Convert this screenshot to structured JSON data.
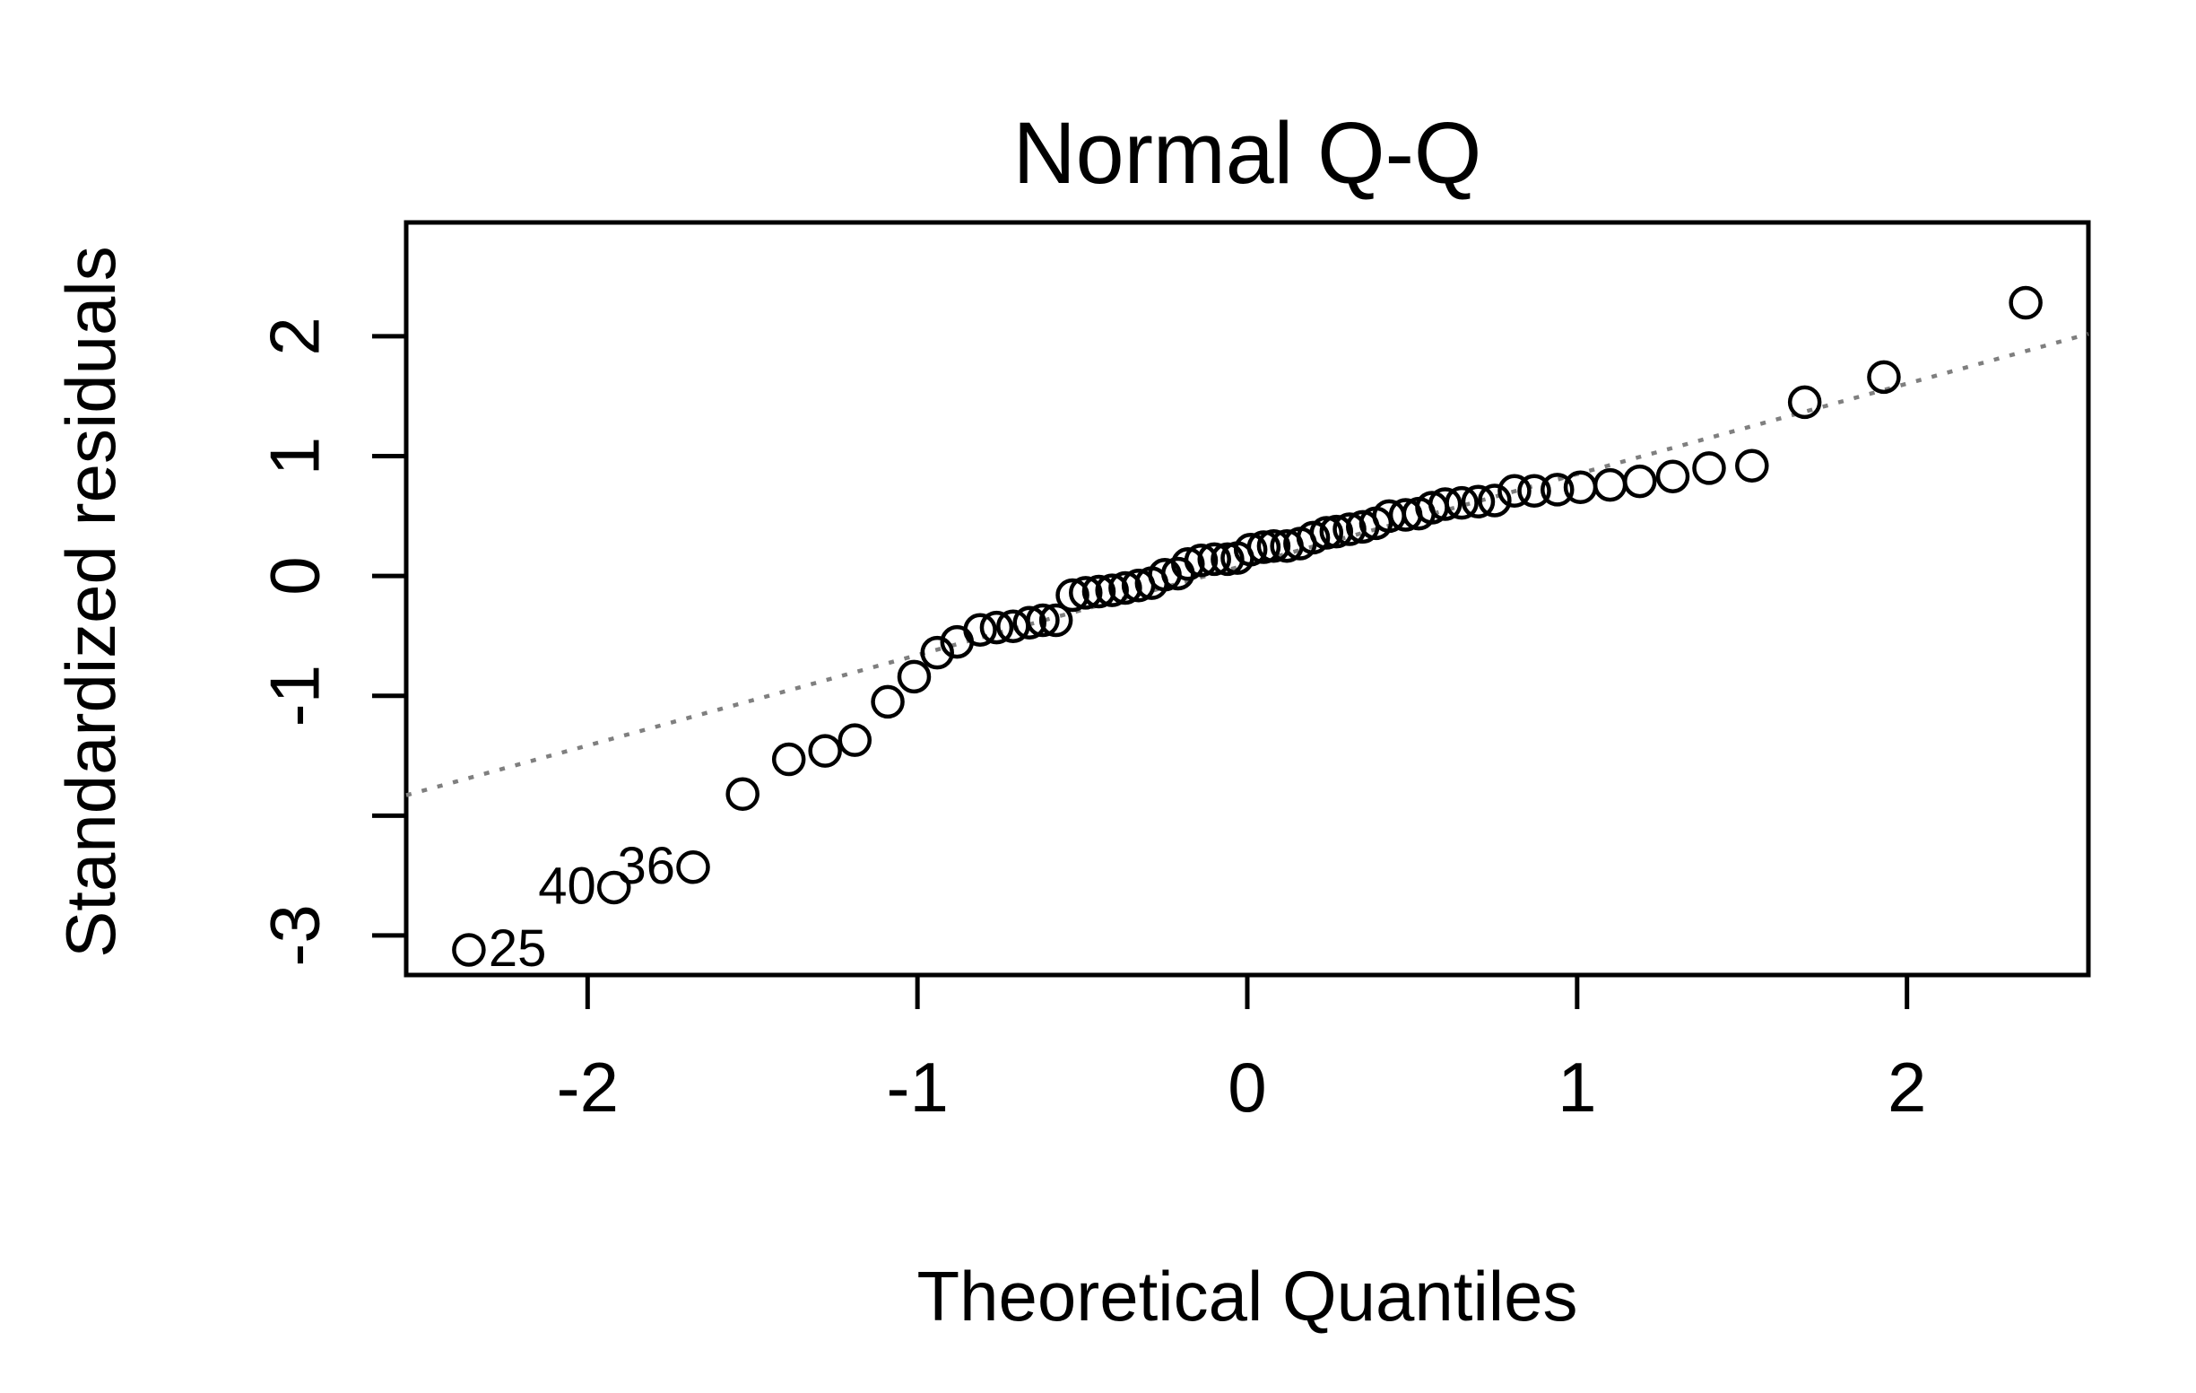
{
  "chart_data": {
    "type": "scatter",
    "title": "Normal Q-Q",
    "xlabel": "Theoretical Quantiles",
    "ylabel": "Standardized residuals",
    "xlim": [
      -2.55,
      2.55
    ],
    "ylim": [
      -3.33,
      2.95
    ],
    "x_ticks": [
      -2,
      -1,
      0,
      1,
      2
    ],
    "x_tick_labels": [
      "-2",
      "-1",
      "0",
      "1",
      "2"
    ],
    "y_ticks": [
      -3,
      -2,
      -1,
      0,
      1,
      2
    ],
    "y_tick_labels": [
      "-3",
      "",
      "-1",
      "0",
      "1",
      "2"
    ],
    "grid": false,
    "reference_line": {
      "style": "dotted",
      "color": "#7f7f7f",
      "x": [
        -2.55,
        2.55
      ],
      "y": [
        -1.83,
        2.02
      ]
    },
    "series": [
      {
        "marker": "open-circle",
        "x": [
          -2.36,
          -1.92,
          -1.68,
          -1.53,
          -1.39,
          -1.28,
          -1.19,
          -1.09,
          -1.01,
          -0.94,
          -0.88,
          -0.81,
          -0.76,
          -0.71,
          -0.66,
          -0.62,
          -0.58,
          -0.53,
          -0.49,
          -0.45,
          -0.41,
          -0.37,
          -0.33,
          -0.29,
          -0.25,
          -0.21,
          -0.18,
          -0.14,
          -0.1,
          -0.06,
          -0.03,
          0.01,
          0.05,
          0.08,
          0.12,
          0.16,
          0.2,
          0.24,
          0.27,
          0.31,
          0.35,
          0.39,
          0.43,
          0.48,
          0.52,
          0.56,
          0.6,
          0.65,
          0.7,
          0.75,
          0.81,
          0.87,
          0.94,
          1.01,
          1.1,
          1.19,
          1.29,
          1.4,
          1.53,
          1.69,
          1.93,
          2.36
        ],
        "y": [
          -3.12,
          -2.6,
          -2.43,
          -1.82,
          -1.53,
          -1.46,
          -1.37,
          -1.05,
          -0.84,
          -0.64,
          -0.55,
          -0.45,
          -0.43,
          -0.42,
          -0.39,
          -0.37,
          -0.37,
          -0.16,
          -0.14,
          -0.13,
          -0.12,
          -0.1,
          -0.08,
          -0.06,
          0.01,
          0.02,
          0.1,
          0.13,
          0.14,
          0.14,
          0.15,
          0.22,
          0.24,
          0.25,
          0.25,
          0.27,
          0.32,
          0.36,
          0.37,
          0.39,
          0.41,
          0.44,
          0.5,
          0.51,
          0.52,
          0.57,
          0.6,
          0.61,
          0.62,
          0.63,
          0.71,
          0.71,
          0.72,
          0.74,
          0.76,
          0.79,
          0.83,
          0.9,
          0.92,
          1.45,
          1.66,
          2.28
        ]
      }
    ],
    "point_labels": [
      {
        "text": "25",
        "x": -2.36,
        "y": -3.12,
        "side": "right"
      },
      {
        "text": "40",
        "x": -1.92,
        "y": -2.6,
        "side": "left"
      },
      {
        "text": "36",
        "x": -1.68,
        "y": -2.43,
        "side": "left"
      }
    ]
  }
}
